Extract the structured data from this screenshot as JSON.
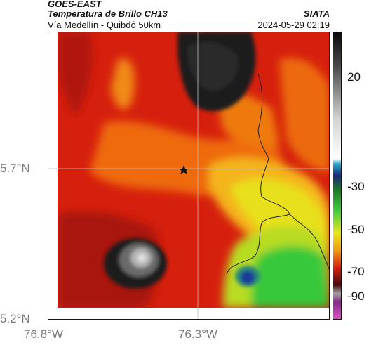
{
  "header": {
    "satellite": "GOES-EAST",
    "product": "Temperatura de Brillo CH13",
    "subtitle": "Vía Medellín - Quibdó 50km",
    "organization": "SIATA",
    "timestamp": "2024-05-29 02:19"
  },
  "axes": {
    "lat_labels": [
      "5.7°N",
      "5.2°N"
    ],
    "lon_labels": [
      "76.8°W",
      "76.3°W"
    ]
  },
  "colorbar": {
    "ticks": [
      "20",
      "-30",
      "-50",
      "-70",
      "-90"
    ],
    "units": ""
  },
  "colors": {
    "cold_core": "#1a1a1a",
    "red": "#c81a12",
    "orange": "#f07a0a",
    "yellow": "#e8e61a",
    "green": "#2cc83a",
    "blue": "#1a3a9a"
  }
}
